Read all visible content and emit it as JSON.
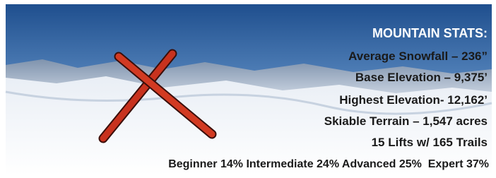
{
  "heading": "MOUNTAIN STATS:",
  "stats": [
    "Average Snowfall – 236”",
    "Base Elevation – 9,375’",
    "Highest Elevation- 12,162’",
    "Skiable Terrain – 1,547 acres",
    "15 Lifts w/ 165 Trails"
  ],
  "breakdown": "Beginner 14% Intermediate 24% Advanced 25%  Expert 37%"
}
